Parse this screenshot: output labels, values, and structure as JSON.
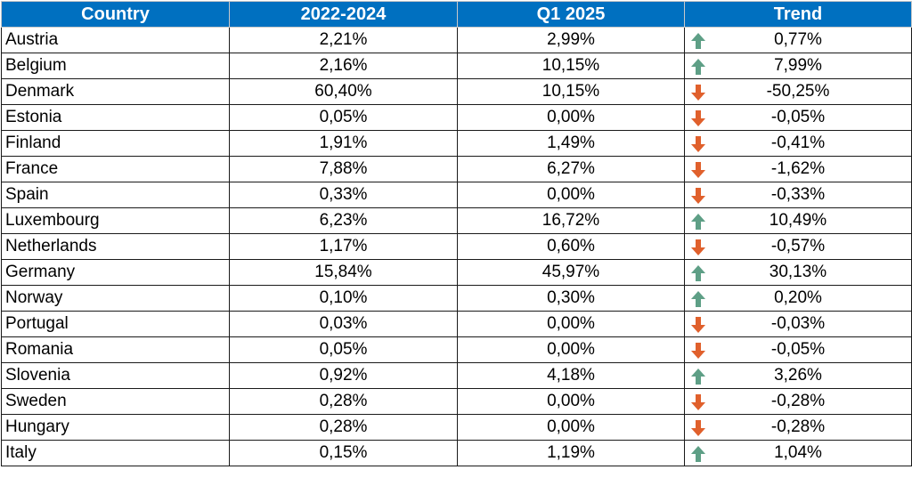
{
  "chart_data": {
    "type": "table",
    "columns": [
      "Country",
      "2022-2024",
      "Q1 2025",
      "Trend"
    ],
    "rows": [
      {
        "country": "Austria",
        "p2022_2024": "2,21%",
        "q1_2025": "2,99%",
        "trend": "0,77%",
        "direction": "up"
      },
      {
        "country": "Belgium",
        "p2022_2024": "2,16%",
        "q1_2025": "10,15%",
        "trend": "7,99%",
        "direction": "up"
      },
      {
        "country": "Denmark",
        "p2022_2024": "60,40%",
        "q1_2025": "10,15%",
        "trend": "-50,25%",
        "direction": "down"
      },
      {
        "country": "Estonia",
        "p2022_2024": "0,05%",
        "q1_2025": "0,00%",
        "trend": "-0,05%",
        "direction": "down"
      },
      {
        "country": "Finland",
        "p2022_2024": "1,91%",
        "q1_2025": "1,49%",
        "trend": "-0,41%",
        "direction": "down"
      },
      {
        "country": "France",
        "p2022_2024": "7,88%",
        "q1_2025": "6,27%",
        "trend": "-1,62%",
        "direction": "down"
      },
      {
        "country": "Spain",
        "p2022_2024": "0,33%",
        "q1_2025": "0,00%",
        "trend": "-0,33%",
        "direction": "down"
      },
      {
        "country": "Luxembourg",
        "p2022_2024": "6,23%",
        "q1_2025": "16,72%",
        "trend": "10,49%",
        "direction": "up"
      },
      {
        "country": "Netherlands",
        "p2022_2024": "1,17%",
        "q1_2025": "0,60%",
        "trend": "-0,57%",
        "direction": "down"
      },
      {
        "country": "Germany",
        "p2022_2024": "15,84%",
        "q1_2025": "45,97%",
        "trend": "30,13%",
        "direction": "up"
      },
      {
        "country": "Norway",
        "p2022_2024": "0,10%",
        "q1_2025": "0,30%",
        "trend": "0,20%",
        "direction": "up"
      },
      {
        "country": "Portugal",
        "p2022_2024": "0,03%",
        "q1_2025": "0,00%",
        "trend": "-0,03%",
        "direction": "down"
      },
      {
        "country": "Romania",
        "p2022_2024": "0,05%",
        "q1_2025": "0,00%",
        "trend": "-0,05%",
        "direction": "down"
      },
      {
        "country": "Slovenia",
        "p2022_2024": "0,92%",
        "q1_2025": "4,18%",
        "trend": "3,26%",
        "direction": "up"
      },
      {
        "country": "Sweden",
        "p2022_2024": "0,28%",
        "q1_2025": "0,00%",
        "trend": "-0,28%",
        "direction": "down"
      },
      {
        "country": "Hungary",
        "p2022_2024": "0,28%",
        "q1_2025": "0,00%",
        "trend": "-0,28%",
        "direction": "down"
      },
      {
        "country": "Italy",
        "p2022_2024": "0,15%",
        "q1_2025": "1,19%",
        "trend": "1,04%",
        "direction": "up"
      }
    ]
  },
  "colors": {
    "header_bg": "#0070c0",
    "arrow_up": "#5e9f86",
    "arrow_down": "#e0602c"
  },
  "icons": {
    "up": "arrow-up-icon",
    "down": "arrow-down-icon"
  }
}
